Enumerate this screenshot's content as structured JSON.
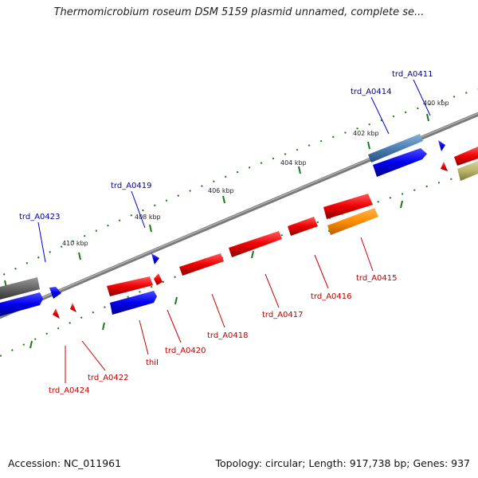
{
  "title": "Thermomicrobium roseum DSM 5159 plasmid unnamed, complete se...",
  "footer": {
    "accession": "Accession: NC_011961",
    "summary": "Topology: circular; Length: 917,738 bp; Genes: 937"
  },
  "scale_labels": [
    "400 kbp",
    "402 kbp",
    "404 kbp",
    "406 kbp",
    "408 kbp",
    "410 kbp"
  ],
  "gene_labels_top": [
    "trd_A0411",
    "trd_A0414",
    "trd_A0419",
    "trd_A0423"
  ],
  "gene_labels_bottom": [
    "trd_A0415",
    "trd_A0416",
    "trd_A0417",
    "trd_A0418",
    "trd_A0420",
    "thiI",
    "trd_A0422",
    "trd_A0424"
  ],
  "colors": {
    "backbone": "#777777",
    "forward_gene": "#0000ee",
    "reverse_gene": "#ee0000",
    "top_label": "#000099",
    "bottom_label": "#bb0000",
    "tick": "#1a7a1a",
    "rna_gene": "#ff8c00",
    "steelblue_gene": "#4a7fb5",
    "gray_gene": "#666666",
    "khaki_gene": "#b8b468"
  }
}
